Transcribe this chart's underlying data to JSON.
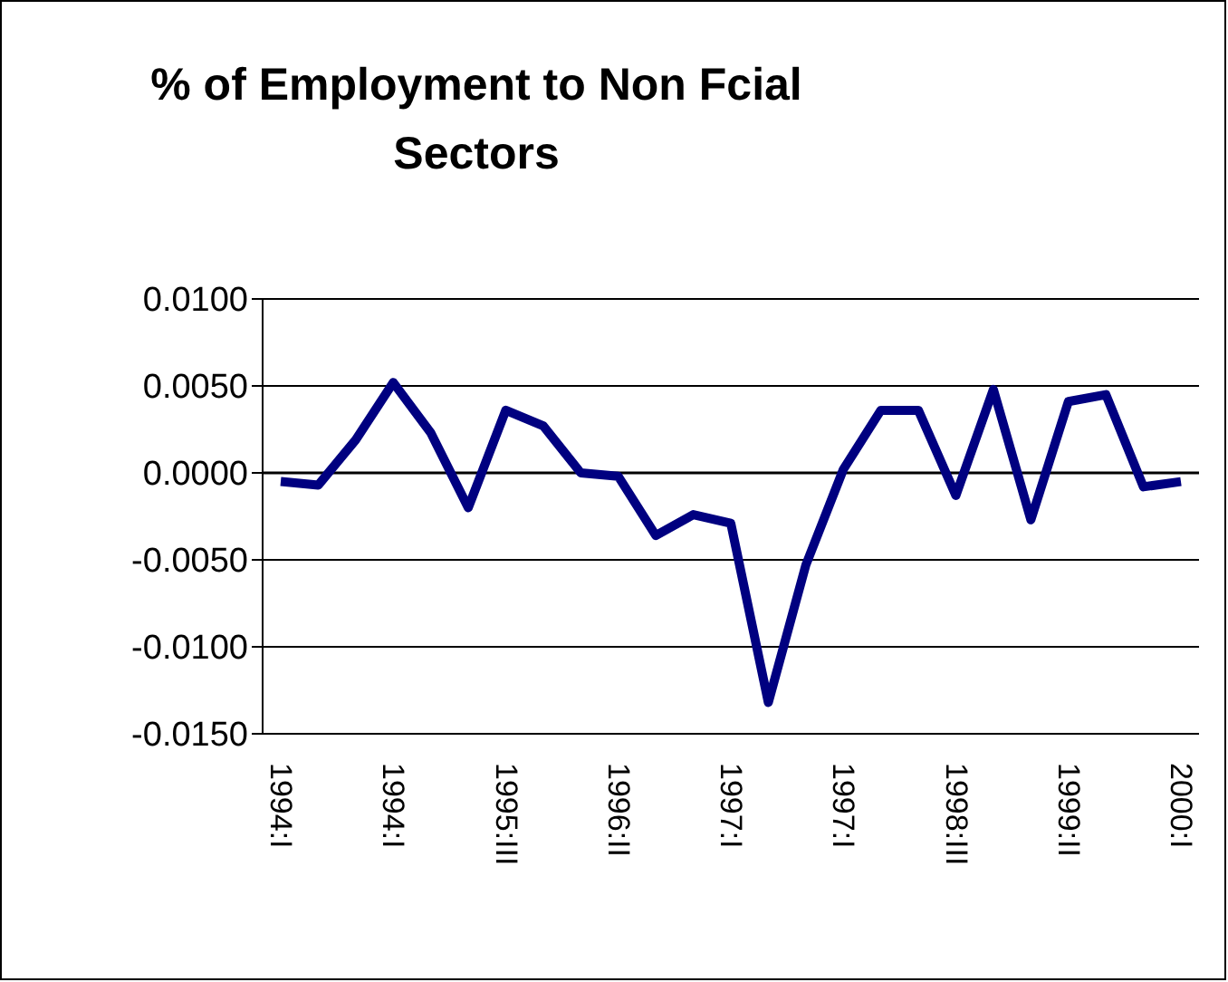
{
  "chart_data": {
    "type": "line",
    "title": "% of Employment to Non Fcial Sectors",
    "categories": [
      "1994:I",
      null,
      null,
      "1994:I",
      null,
      null,
      "1995:III",
      null,
      null,
      "1996:II",
      null,
      null,
      "1997:I",
      null,
      null,
      "1997:I",
      null,
      null,
      "1998:III",
      null,
      null,
      "1999:II",
      null,
      null,
      "2000:I"
    ],
    "series": [
      {
        "color": "#000080",
        "values": [
          -0.0005,
          -0.0007,
          0.0019,
          0.0052,
          0.0023,
          -0.002,
          0.0036,
          0.0027,
          0.0,
          -0.0002,
          -0.0036,
          -0.0024,
          -0.0029,
          -0.0132,
          -0.0053,
          0.0002,
          0.0036,
          0.0036,
          -0.0013,
          0.0048,
          -0.0027,
          0.0041,
          0.0045,
          -0.0008,
          -0.0005
        ]
      }
    ],
    "ylim": [
      -0.015,
      0.01
    ],
    "yticks": [
      {
        "value": -0.015,
        "label": "-0.0150"
      },
      {
        "value": -0.01,
        "label": "-0.0100"
      },
      {
        "value": -0.005,
        "label": "-0.0050"
      },
      {
        "value": 0,
        "label": "0.0000"
      },
      {
        "value": 0.005,
        "label": "0.0050"
      },
      {
        "value": 0.01,
        "label": "0.0100"
      }
    ],
    "grid": "y",
    "legend": false,
    "marker": "none",
    "line_style": "solid"
  }
}
